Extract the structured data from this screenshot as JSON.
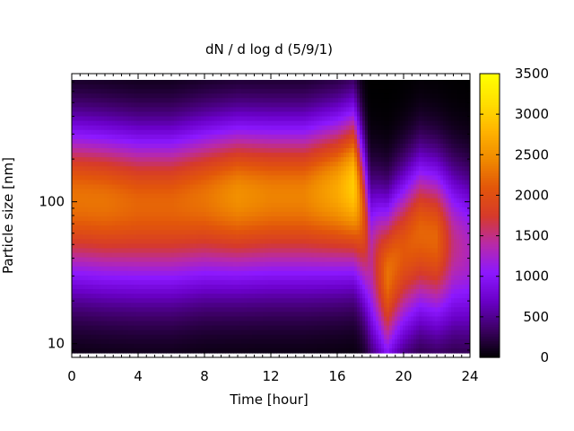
{
  "chart_data": {
    "type": "heatmap",
    "title": "dN / d log d (5/9/1)",
    "xlabel": "Time [hour]",
    "ylabel": "Particle size [nm]",
    "xlim": [
      0,
      24
    ],
    "ylim": [
      8,
      800
    ],
    "y_scale": "log",
    "x_ticks": [
      0,
      4,
      8,
      12,
      16,
      20,
      24
    ],
    "y_ticks": [
      10,
      100
    ],
    "colorbar": {
      "range": [
        0,
        3500
      ],
      "ticks": [
        0,
        500,
        1000,
        1500,
        2000,
        2500,
        3000,
        3500
      ],
      "colormap": [
        "#000000",
        "#3c0064",
        "#6a00c8",
        "#8c18ff",
        "#b82aa8",
        "#d63a2a",
        "#e2560a",
        "#f08a00",
        "#ffb400",
        "#ffe000",
        "#ffff00"
      ]
    },
    "grid": false,
    "mode_size_nm_by_hour": [
      {
        "t": 0,
        "d": 105
      },
      {
        "t": 2,
        "d": 100
      },
      {
        "t": 4,
        "d": 95
      },
      {
        "t": 6,
        "d": 95
      },
      {
        "t": 8,
        "d": 105
      },
      {
        "t": 10,
        "d": 110
      },
      {
        "t": 12,
        "d": 110
      },
      {
        "t": 14,
        "d": 110
      },
      {
        "t": 16,
        "d": 120
      },
      {
        "t": 17,
        "d": 130
      },
      {
        "t": 18,
        "d": 40
      },
      {
        "t": 19,
        "d": 30
      },
      {
        "t": 20,
        "d": 45
      },
      {
        "t": 21,
        "d": 60
      },
      {
        "t": 22,
        "d": 55
      },
      {
        "t": 23,
        "d": 50
      },
      {
        "t": 24,
        "d": 45
      }
    ],
    "peak_concentration_by_hour": [
      {
        "t": 0,
        "v": 2300
      },
      {
        "t": 2,
        "v": 2300
      },
      {
        "t": 4,
        "v": 2200
      },
      {
        "t": 6,
        "v": 2200
      },
      {
        "t": 8,
        "v": 2300
      },
      {
        "t": 10,
        "v": 2500
      },
      {
        "t": 12,
        "v": 2400
      },
      {
        "t": 14,
        "v": 2400
      },
      {
        "t": 16,
        "v": 2700
      },
      {
        "t": 17,
        "v": 3000
      },
      {
        "t": 18,
        "v": 1400
      },
      {
        "t": 19,
        "v": 2300
      },
      {
        "t": 20,
        "v": 2100
      },
      {
        "t": 21,
        "v": 2200
      },
      {
        "t": 22,
        "v": 2200
      },
      {
        "t": 23,
        "v": 1500
      },
      {
        "t": 24,
        "v": 1300
      }
    ]
  }
}
